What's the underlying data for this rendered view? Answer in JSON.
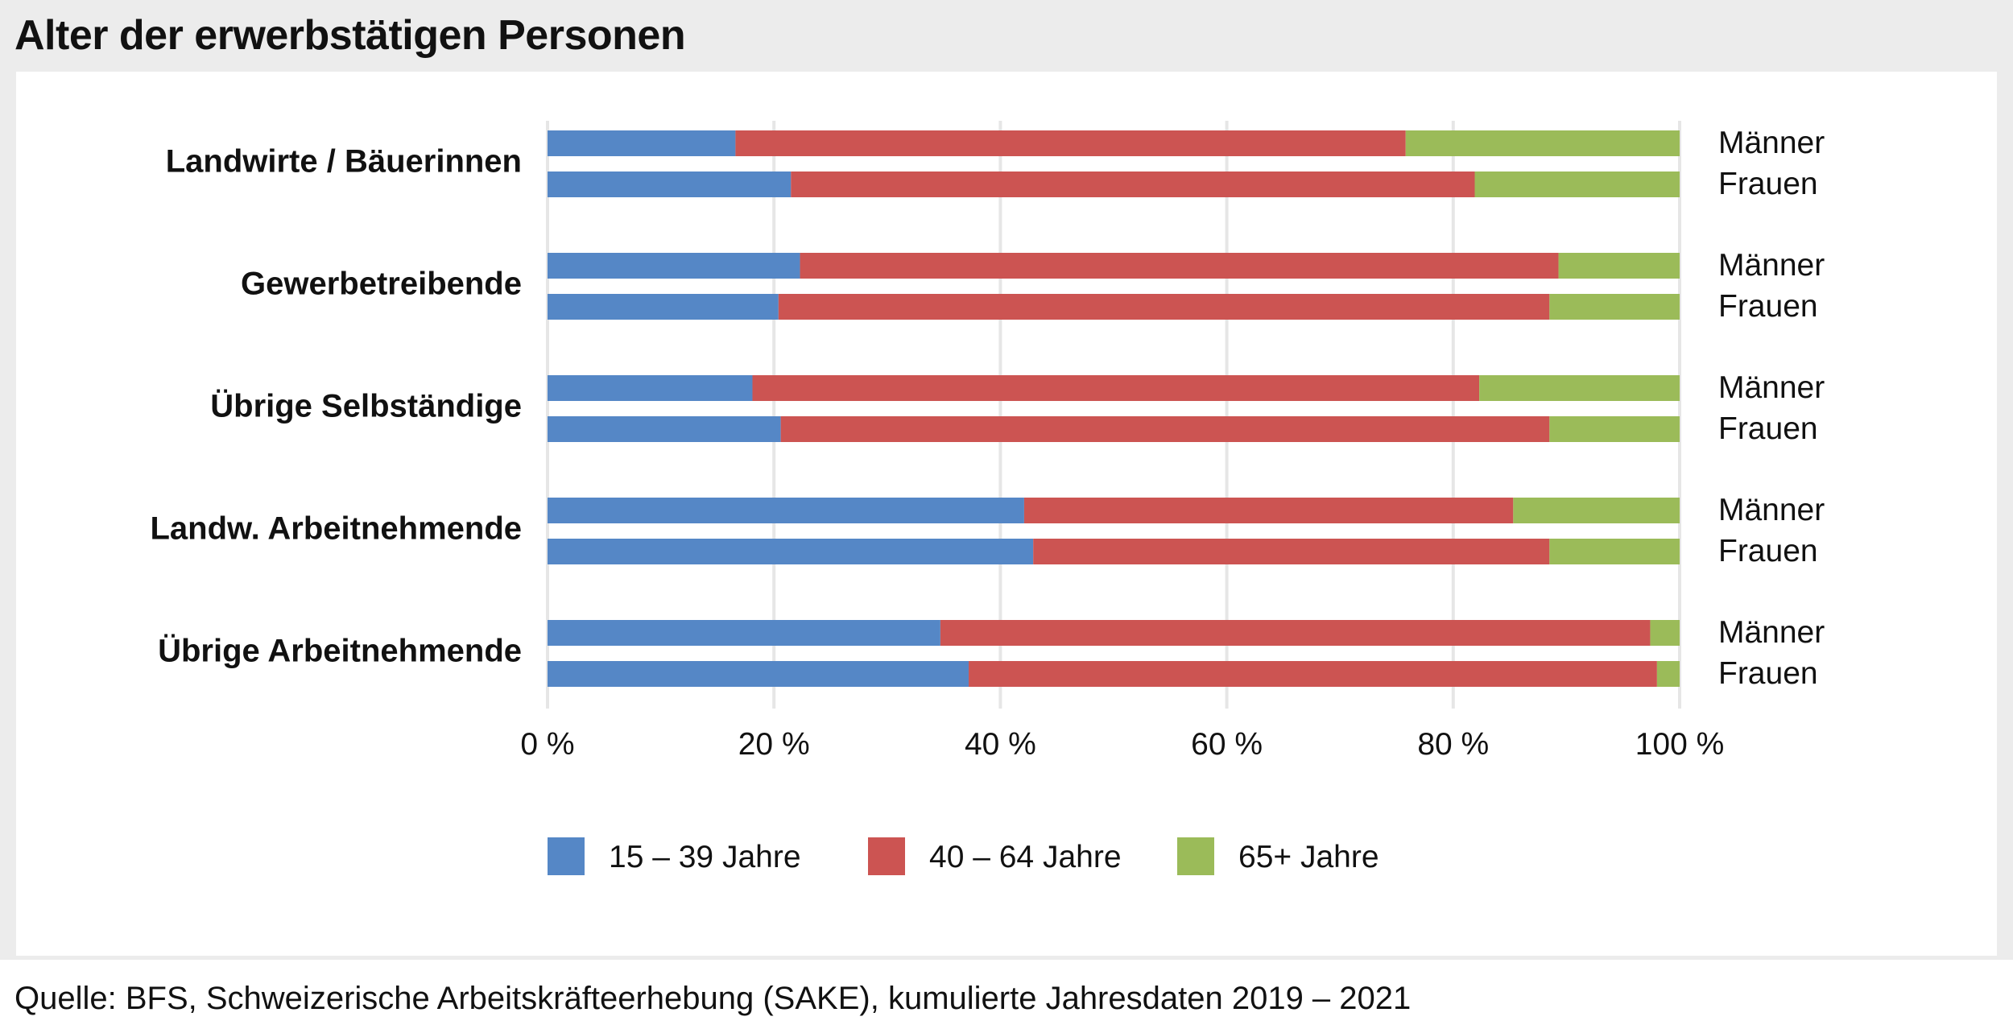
{
  "title": "Alter der erwerbstätigen Personen",
  "source": "Quelle: BFS, Schweizerische Arbeitskräfteerhebung (SAKE), kumulierte Jahresdaten 2019 – 2021",
  "colors": {
    "age_15_39": "#5587c6",
    "age_40_64": "#cc5452",
    "age_65_plus": "#9bbb59",
    "grid": "#e6e6e6"
  },
  "chart_data": {
    "type": "bar",
    "orientation": "horizontal",
    "stacked": true,
    "xlim": [
      0,
      100
    ],
    "x_ticks": [
      "0 %",
      "20 %",
      "40 %",
      "60 %",
      "80 %",
      "100 %"
    ],
    "grid": true,
    "legend_position": "bottom-left",
    "series": [
      {
        "name": "15 – 39 Jahre",
        "color_key": "age_15_39"
      },
      {
        "name": "40 – 64 Jahre",
        "color_key": "age_40_64"
      },
      {
        "name": "65+ Jahre",
        "color_key": "age_65_plus"
      }
    ],
    "groups": [
      {
        "category": "Landwirte / Bäuerinnen",
        "bars": [
          {
            "sex": "Männer",
            "values": [
              16.6,
              59.2,
              24.2
            ]
          },
          {
            "sex": "Frauen",
            "values": [
              21.5,
              60.4,
              18.1
            ]
          }
        ]
      },
      {
        "category": "Gewerbetreibende",
        "bars": [
          {
            "sex": "Männer",
            "values": [
              22.3,
              67.0,
              10.7
            ]
          },
          {
            "sex": "Frauen",
            "values": [
              20.4,
              68.1,
              11.5
            ]
          }
        ]
      },
      {
        "category": "Übrige Selbständige",
        "bars": [
          {
            "sex": "Männer",
            "values": [
              18.1,
              64.2,
              17.7
            ]
          },
          {
            "sex": "Frauen",
            "values": [
              20.6,
              67.9,
              11.5
            ]
          }
        ]
      },
      {
        "category": "Landw. Arbeitnehmende",
        "bars": [
          {
            "sex": "Männer",
            "values": [
              42.1,
              43.2,
              14.7
            ]
          },
          {
            "sex": "Frauen",
            "values": [
              42.9,
              45.6,
              11.5
            ]
          }
        ]
      },
      {
        "category": "Übrige Arbeitnehmende",
        "bars": [
          {
            "sex": "Männer",
            "values": [
              34.7,
              62.7,
              2.6
            ]
          },
          {
            "sex": "Frauen",
            "values": [
              37.2,
              60.8,
              2.0
            ]
          }
        ]
      }
    ]
  }
}
